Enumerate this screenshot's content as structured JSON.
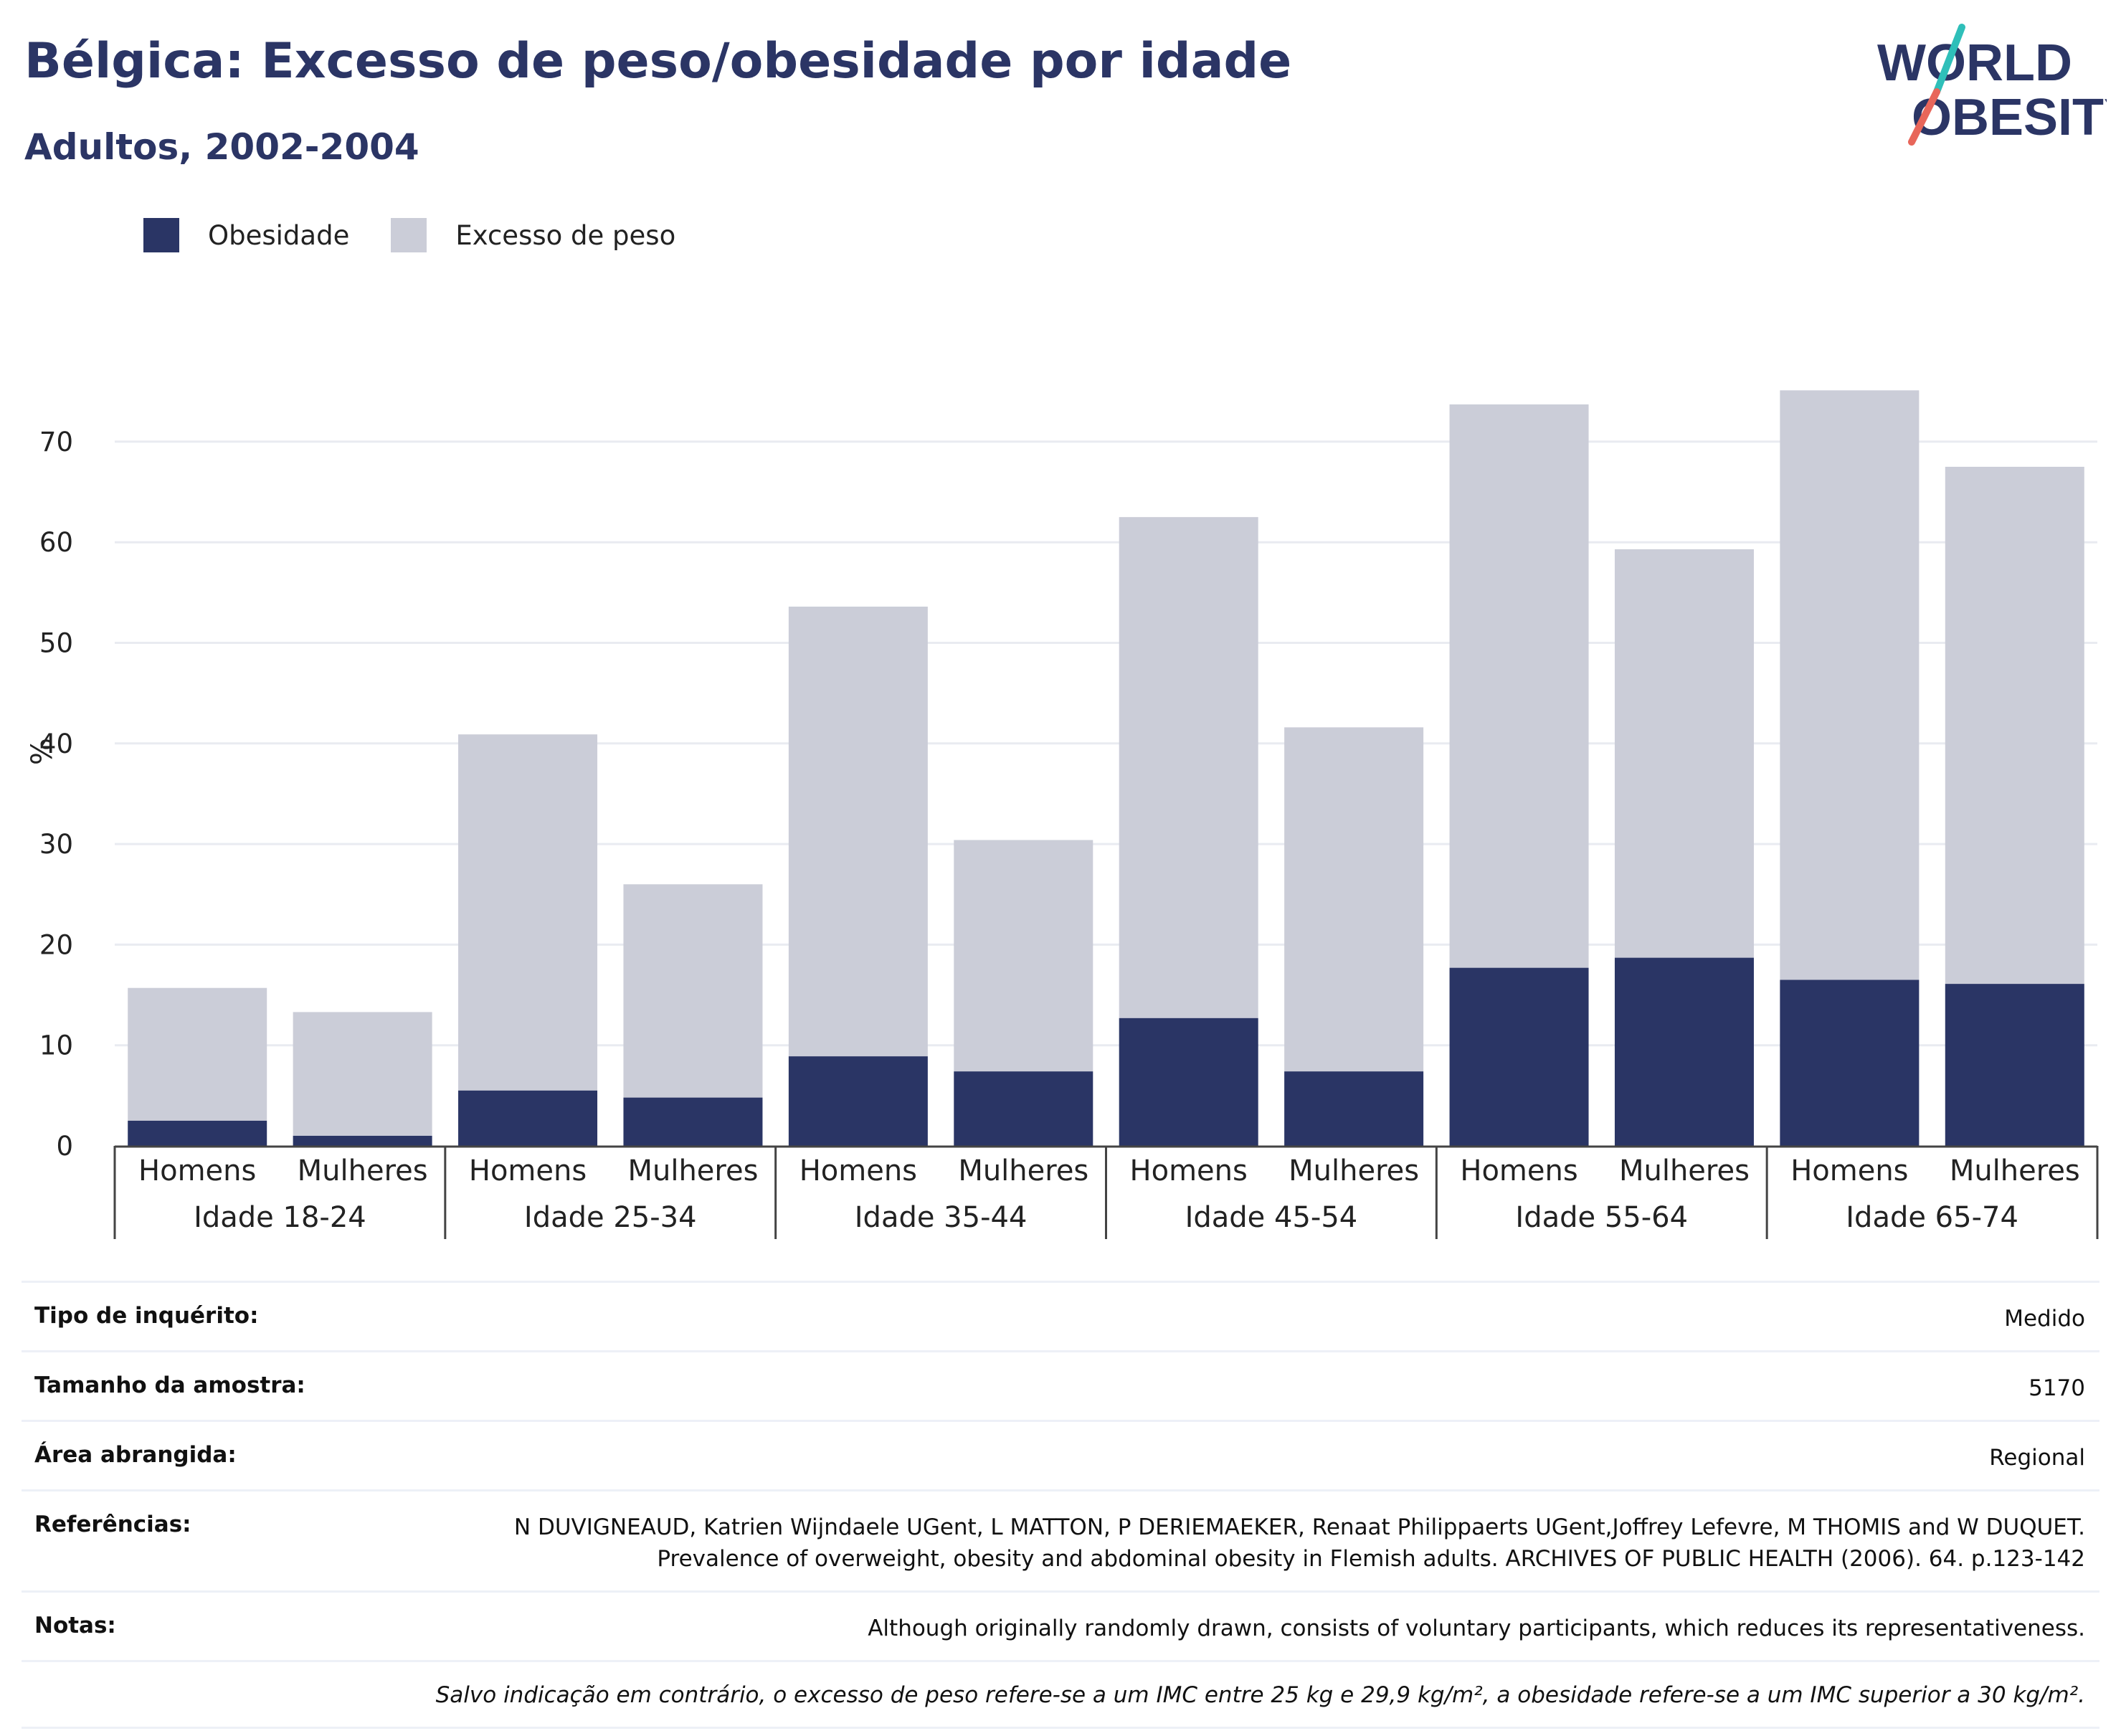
{
  "header": {
    "title": "Bélgica: Excesso de peso/obesidade por idade",
    "subtitle": "Adultos, 2002-2004",
    "logo_line1": "WORLD",
    "logo_line2": "OBESITY"
  },
  "colors": {
    "obesity": "#2a3565",
    "overweight": "#cbcdd8",
    "grid": "#e9ebf1",
    "axis": "#444444"
  },
  "chart_data": {
    "type": "bar",
    "stacked": true,
    "ylabel": "%",
    "ylim": [
      0,
      80
    ],
    "yticks": [
      0,
      10,
      20,
      30,
      40,
      50,
      60,
      70
    ],
    "grid": true,
    "legend_position": "top-left",
    "groups": [
      "Idade 18-24",
      "Idade 25-34",
      "Idade 35-44",
      "Idade 45-54",
      "Idade 55-64",
      "Idade 65-74"
    ],
    "subcategories": [
      "Homens",
      "Mulheres"
    ],
    "series": [
      {
        "name": "Obesidade",
        "values": [
          2.5,
          1.0,
          5.5,
          4.8,
          8.9,
          7.4,
          12.7,
          7.4,
          17.7,
          18.7,
          16.5,
          16.1
        ]
      },
      {
        "name": "Excesso de peso",
        "values": [
          13.2,
          12.3,
          35.4,
          21.2,
          44.7,
          23.0,
          49.8,
          34.2,
          56.0,
          40.6,
          58.6,
          51.4
        ]
      }
    ]
  },
  "info": {
    "rows": [
      {
        "label": "Tipo de inquérito:",
        "value": "Medido"
      },
      {
        "label": "Tamanho da amostra:",
        "value": "5170"
      },
      {
        "label": "Área abrangida:",
        "value": "Regional"
      },
      {
        "label": "Referências:",
        "value": "N DUVIGNEAUD, Katrien Wijndaele UGent, L MATTON, P DERIEMAEKER, Renaat Philippaerts UGent,Joffrey Lefevre, M THOMIS and W DUQUET. Prevalence of overweight, obesity and abdominal obesity in Flemish adults. ARCHIVES OF PUBLIC HEALTH (2006). 64. p.123-142"
      },
      {
        "label": "Notas:",
        "value": "Although originally randomly drawn, consists of voluntary participants, which reduces its representativeness."
      }
    ],
    "footnote": "Salvo indicação em contrário, o excesso de peso refere-se a um IMC entre 25 kg e 29,9 kg/m², a obesidade refere-se a um IMC superior a 30 kg/m²."
  }
}
